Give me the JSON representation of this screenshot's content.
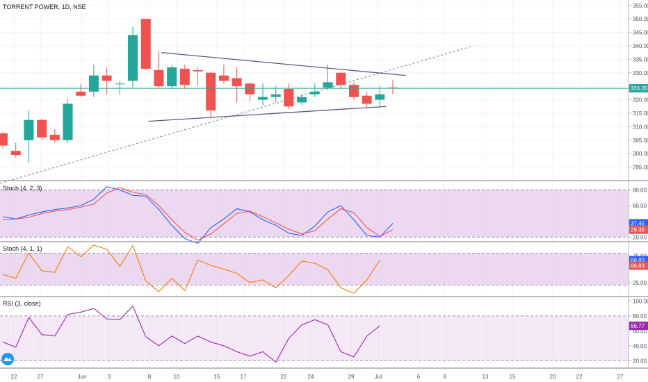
{
  "header": {
    "title": "TORRENT POWER, 1D, NSE"
  },
  "chart_data": {
    "type": "candlestick",
    "title": "TORRENT POWER, 1D, NSE",
    "x_tick_labels": [
      "22",
      "27",
      "Jun",
      "3",
      "8",
      "10",
      "15",
      "17",
      "22",
      "24",
      "29",
      "Jul",
      "6",
      "8",
      "13",
      "15",
      "20",
      "22",
      "27"
    ],
    "colors": {
      "up": "#26a69a",
      "down": "#ef5350",
      "stoch_k": "#2962ff",
      "stoch_d": "#ef5350",
      "stoch_fast": "#f57c00",
      "rsi": "#9c27b0",
      "band_fill": "#e1bee7"
    },
    "price": {
      "ylim": [
        290,
        357
      ],
      "y_ticks": [
        "355.00",
        "350.00",
        "345.00",
        "340.00",
        "335.00",
        "330.00",
        "325.00",
        "320.00",
        "315.00",
        "310.00",
        "305.00",
        "300.00",
        "295.00"
      ],
      "last_price_label": "324.25",
      "last_price": 324.25,
      "candles": [
        {
          "o": 307.5,
          "h": 308.0,
          "l": 302.0,
          "c": 303.0
        },
        {
          "o": 301.0,
          "h": 304.0,
          "l": 298.5,
          "c": 299.5
        },
        {
          "o": 305.0,
          "h": 316.0,
          "l": 296.5,
          "c": 312.5
        },
        {
          "o": 312.5,
          "h": 313.0,
          "l": 305.0,
          "c": 306.0
        },
        {
          "o": 307.0,
          "h": 309.0,
          "l": 304.0,
          "c": 305.0
        },
        {
          "o": 305.0,
          "h": 320.5,
          "l": 304.0,
          "c": 318.5
        },
        {
          "o": 323.0,
          "h": 326.0,
          "l": 321.0,
          "c": 321.5
        },
        {
          "o": 323.0,
          "h": 333.0,
          "l": 321.0,
          "c": 329.0
        },
        {
          "o": 329.0,
          "h": 332.0,
          "l": 322.0,
          "c": 327.0
        },
        {
          "o": 326.0,
          "h": 327.0,
          "l": 322.0,
          "c": 326.0
        },
        {
          "o": 327.0,
          "h": 347.0,
          "l": 324.5,
          "c": 344.0
        },
        {
          "o": 350.0,
          "h": 350.0,
          "l": 331.0,
          "c": 331.5
        },
        {
          "o": 331.0,
          "h": 338.0,
          "l": 324.0,
          "c": 325.0
        },
        {
          "o": 325.0,
          "h": 333.0,
          "l": 324.0,
          "c": 332.0
        },
        {
          "o": 331.5,
          "h": 333.0,
          "l": 324.0,
          "c": 325.5
        },
        {
          "o": 331.0,
          "h": 332.0,
          "l": 325.0,
          "c": 330.5
        },
        {
          "o": 330.0,
          "h": 330.5,
          "l": 313.5,
          "c": 316.0
        },
        {
          "o": 329.0,
          "h": 333.0,
          "l": 326.0,
          "c": 327.0
        },
        {
          "o": 328.0,
          "h": 332.0,
          "l": 319.0,
          "c": 325.0
        },
        {
          "o": 326.0,
          "h": 326.5,
          "l": 319.5,
          "c": 322.0
        },
        {
          "o": 320.0,
          "h": 326.0,
          "l": 318.0,
          "c": 321.0
        },
        {
          "o": 321.0,
          "h": 325.0,
          "l": 319.0,
          "c": 322.0
        },
        {
          "o": 324.0,
          "h": 326.0,
          "l": 316.5,
          "c": 317.5
        },
        {
          "o": 319.0,
          "h": 322.0,
          "l": 318.0,
          "c": 321.0
        },
        {
          "o": 322.0,
          "h": 326.0,
          "l": 321.0,
          "c": 323.0
        },
        {
          "o": 324.5,
          "h": 333.0,
          "l": 323.5,
          "c": 326.5
        },
        {
          "o": 330.0,
          "h": 330.5,
          "l": 324.0,
          "c": 325.5
        },
        {
          "o": 325.5,
          "h": 326.5,
          "l": 320.0,
          "c": 321.0
        },
        {
          "o": 321.5,
          "h": 323.0,
          "l": 317.0,
          "c": 318.5
        },
        {
          "o": 320.0,
          "h": 325.0,
          "l": 317.0,
          "c": 322.0
        },
        {
          "o": 324.5,
          "h": 327.5,
          "l": 322.0,
          "c": 324.25
        }
      ]
    },
    "stoch_slow": {
      "title": "Stoch (4, 2, 3)",
      "ylim": [
        15,
        90
      ],
      "y_ticks": [
        "80.00",
        "60.00",
        "40.00",
        "20.00"
      ],
      "bands": [
        80,
        20
      ],
      "value_labels": [
        "37.45",
        "29.36"
      ],
      "k": [
        46,
        43,
        48,
        52,
        55,
        57,
        60,
        68,
        84,
        80,
        73,
        72,
        55,
        35,
        18,
        12,
        32,
        43,
        56,
        52,
        42,
        35,
        25,
        22,
        34,
        52,
        60,
        42,
        22,
        20,
        37.45
      ],
      "d": [
        42,
        43,
        45,
        50,
        53,
        55,
        58,
        62,
        76,
        83,
        77,
        74,
        60,
        42,
        26,
        16,
        24,
        37,
        50,
        53,
        46,
        38,
        30,
        24,
        28,
        43,
        56,
        51,
        32,
        21,
        29.36
      ]
    },
    "stoch_fast": {
      "title": "Stoch (4, 1, 1)",
      "ylim": [
        0,
        100
      ],
      "y_ticks": [
        "75.00",
        "25.00"
      ],
      "bands": [
        80,
        20
      ],
      "value_labels": [
        "66.83",
        "66.83"
      ],
      "k": [
        40,
        33,
        80,
        47,
        44,
        92,
        73,
        95,
        87,
        55,
        94,
        28,
        8,
        33,
        10,
        67,
        57,
        50,
        42,
        25,
        30,
        15,
        38,
        65,
        61,
        49,
        15,
        5,
        30,
        66.83
      ]
    },
    "rsi": {
      "title": "RSI (3, close)",
      "ylim": [
        10,
        105
      ],
      "y_ticks": [
        "100.00",
        "80.00",
        "60.00",
        "40.00",
        "20.00"
      ],
      "bands": [
        80,
        20
      ],
      "value_label": "66.77",
      "values": [
        45,
        38,
        78,
        55,
        53,
        82,
        85,
        90,
        76,
        75,
        93,
        52,
        40,
        53,
        43,
        53,
        45,
        40,
        32,
        26,
        32,
        18,
        50,
        68,
        75,
        68,
        32,
        25,
        53,
        66.77
      ]
    },
    "drawings": [
      {
        "type": "trendline-dashed",
        "from": {
          "i": -0.2,
          "price": 289.0
        },
        "to": {
          "i": 36.2,
          "price": 340.0
        }
      },
      {
        "type": "trendline",
        "from": {
          "i": 12.2,
          "price": 337.5
        },
        "to": {
          "i": 31.0,
          "price": 329.0
        }
      },
      {
        "type": "trendline",
        "from": {
          "i": 11.2,
          "price": 312.0
        },
        "to": {
          "i": 29.5,
          "price": 317.5
        }
      }
    ]
  }
}
